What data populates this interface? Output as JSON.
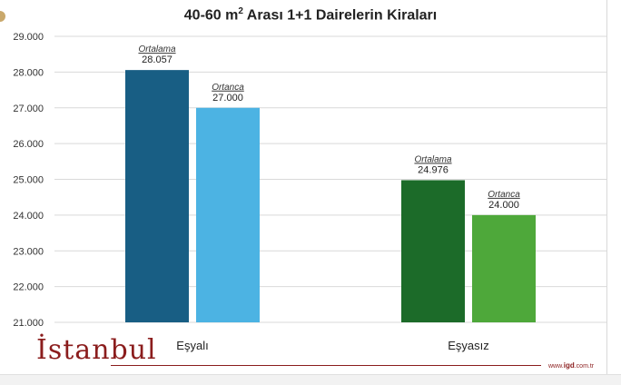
{
  "title_main": "40-60 m",
  "title_sup": "2",
  "title_rest": " Arası 1+1 Dairelerin Kiraları",
  "logo_text": "İstanbul",
  "site": {
    "prefix": "www.",
    "brand": "igd",
    "suffix": ".com.tr"
  },
  "colors": {
    "ortalama_esyali": "#185e84",
    "ortanca_esyali": "#4cb3e3",
    "ortalama_esyasiz": "#1c6b29",
    "ortanca_esyasiz": "#4ea83a",
    "grid": "#d9d9d9",
    "accent": "#8b1d1d"
  },
  "chart_data": {
    "type": "bar",
    "categories": [
      "Eşyalı",
      "Eşyasız"
    ],
    "series": [
      {
        "name": "Ortalama",
        "values": [
          28057,
          24976
        ],
        "labels": [
          "28.057",
          "24.976"
        ]
      },
      {
        "name": "Ortanca",
        "values": [
          27000,
          24000
        ],
        "labels": [
          "27.000",
          "24.000"
        ]
      }
    ],
    "ylim": [
      21000,
      29000
    ],
    "yticks": [
      29000,
      28000,
      27000,
      26000,
      25000,
      24000,
      23000,
      22000,
      21000
    ],
    "ytick_labels": [
      "29.000",
      "28.000",
      "27.000",
      "26.000",
      "25.000",
      "24.000",
      "23.000",
      "22.000",
      "21.000"
    ],
    "grid": true,
    "legend": "none"
  }
}
